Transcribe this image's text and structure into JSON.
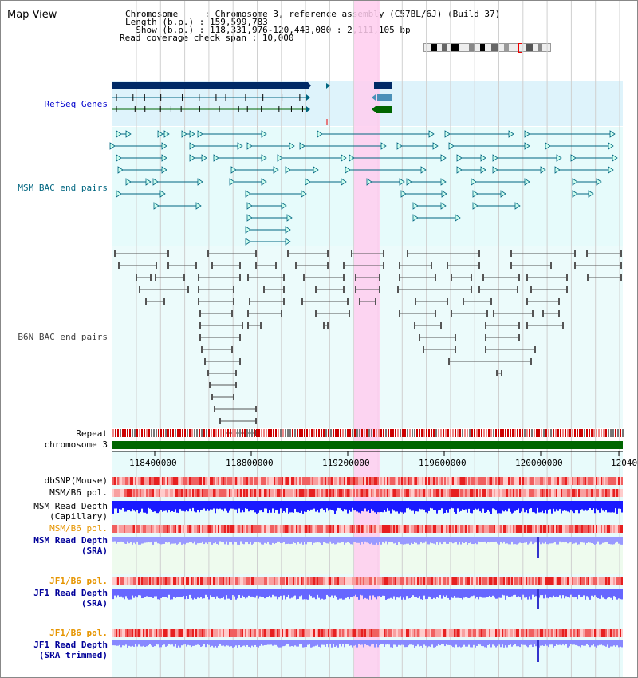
{
  "title": "Map View",
  "header": {
    "lines": [
      "Chromosome     : Chromosome 3, reference assembly (C57BL/6J) (Build 37)",
      "Length (b.p.) : 159,599,783",
      "  Show (b.p.) : 118,331,976-120,443,080 : 2,111,105 bp",
      "Read coverage check span : 10,000"
    ]
  },
  "tracks": {
    "refseq": "RefSeq Genes",
    "msm_bac": "MSM BAC end pairs",
    "b6n_bac": "B6N BAC end pairs",
    "repeat": "Repeat",
    "chromosome": "chromosome 3",
    "dbsnp": "dbSNP(Mouse)",
    "msm_b6_pol": "MSM/B6 pol.",
    "msm_read_depth_cap_1": "MSM Read Depth",
    "msm_read_depth_cap_2": "(Capillary)",
    "msm_b6_pol_2": "MSM/B6 pol.",
    "msm_read_depth_sra_1": "MSM Read Depth",
    "msm_read_depth_sra_2": "(SRA)",
    "jf1_b6_pol_1": "JF1/B6 pol.",
    "jf1_read_depth_1": "JF1 Read Depth",
    "jf1_read_depth_1b": "(SRA)",
    "jf1_b6_pol_2": "JF1/B6 pol.",
    "jf1_read_depth_2": "JF1 Read Depth",
    "jf1_read_depth_2b": "(SRA trimmed)"
  },
  "axis": {
    "ticks": [
      "118400000",
      "118800000",
      "119200000",
      "119600000",
      "120000000",
      "12040"
    ]
  },
  "colors": {
    "refseq_label": "#0000cc",
    "msm_label": "#006680",
    "b6n_label": "#404040",
    "orange_label": "#e69500",
    "blue_label": "#000099",
    "highlight": "#ffccee",
    "chromosome_bar": "#006600"
  }
}
